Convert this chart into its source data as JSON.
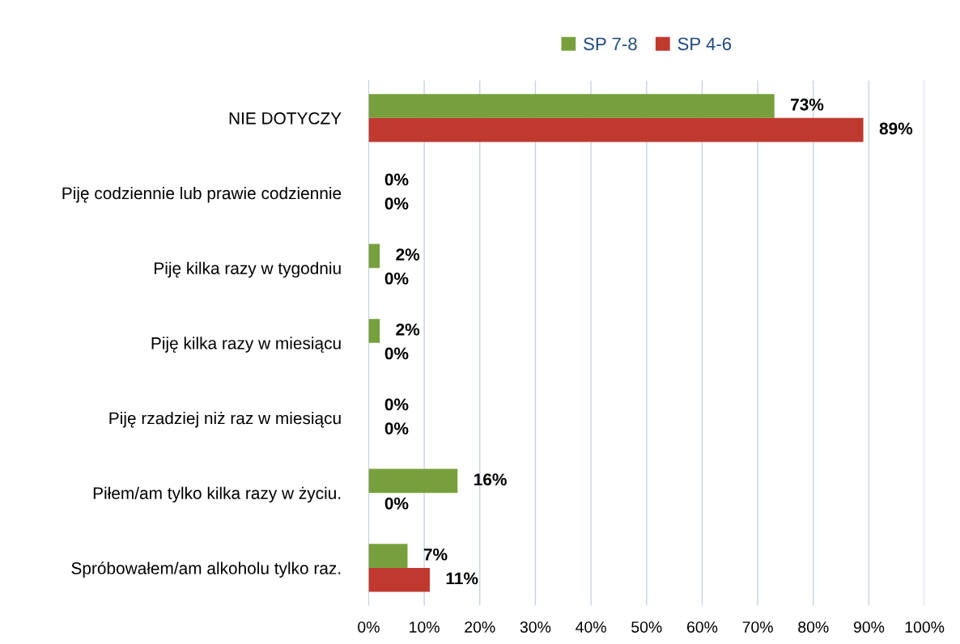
{
  "chart_data": {
    "type": "bar",
    "orientation": "horizontal",
    "categories": [
      "NIE DOTYCZY",
      "Piję codziennie lub prawie codziennie",
      "Piję kilka razy w tygodniu",
      "Piję kilka razy w miesiącu",
      "Piję rzadziej niż raz w miesiącu",
      "Piłem/am tylko kilka razy w życiu.",
      "Spróbowałem/am alkoholu tylko raz."
    ],
    "series": [
      {
        "name": "SP 7-8",
        "color": "#77a03c",
        "values": [
          73,
          0,
          2,
          2,
          0,
          16,
          7
        ],
        "value_labels": [
          "73%",
          "0%",
          "2%",
          "2%",
          "0%",
          "16%",
          "7%"
        ]
      },
      {
        "name": "SP 4-6",
        "color": "#c0392f",
        "values": [
          89,
          0,
          0,
          0,
          0,
          0,
          11
        ],
        "value_labels": [
          "89%",
          "0%",
          "0%",
          "0%",
          "0%",
          "0%",
          "11%"
        ]
      }
    ],
    "xlim": [
      0,
      100
    ],
    "xticks": [
      {
        "value": 0,
        "label": "0%"
      },
      {
        "value": 10,
        "label": "10%"
      },
      {
        "value": 20,
        "label": "20%"
      },
      {
        "value": 30,
        "label": "30%"
      },
      {
        "value": 40,
        "label": "40%"
      },
      {
        "value": 50,
        "label": "50%"
      },
      {
        "value": 60,
        "label": "60%"
      },
      {
        "value": 70,
        "label": "70%"
      },
      {
        "value": 80,
        "label": "80%"
      },
      {
        "value": 90,
        "label": "90%"
      },
      {
        "value": 100,
        "label": "100%"
      }
    ],
    "grid": "x",
    "legend": "top"
  }
}
